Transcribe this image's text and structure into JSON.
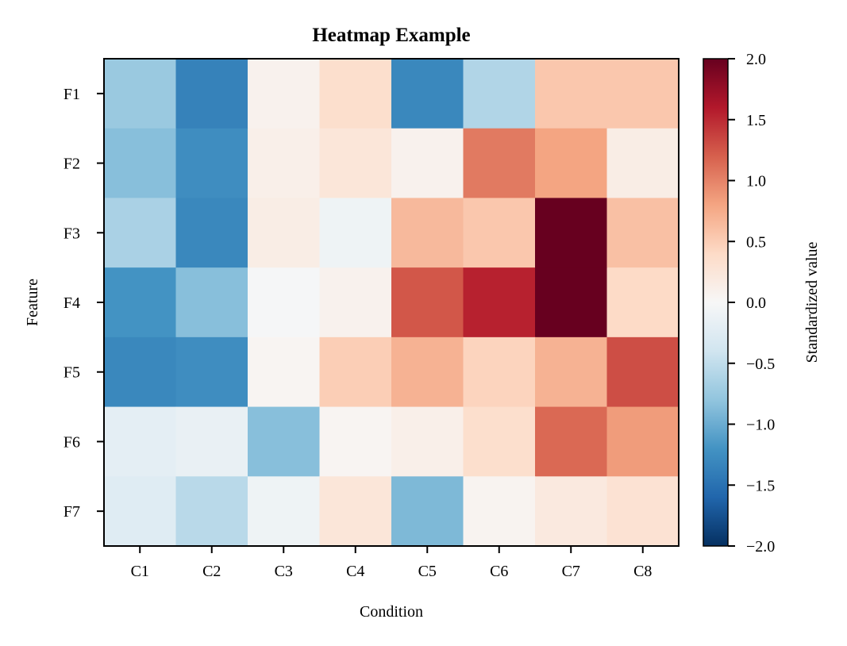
{
  "chart_data": {
    "type": "heatmap",
    "title": "Heatmap Example",
    "xlabel": "Condition",
    "ylabel": "Feature",
    "x_categories": [
      "C1",
      "C2",
      "C3",
      "C4",
      "C5",
      "C6",
      "C7",
      "C8"
    ],
    "y_categories": [
      "F1",
      "F2",
      "F3",
      "F4",
      "F5",
      "F6",
      "F7"
    ],
    "values": [
      [
        -0.75,
        -1.35,
        0.08,
        0.35,
        -1.3,
        -0.6,
        0.55,
        0.55
      ],
      [
        -0.85,
        -1.25,
        0.12,
        0.25,
        0.08,
        1.05,
        0.8,
        0.15
      ],
      [
        -0.65,
        -1.3,
        0.15,
        -0.1,
        0.65,
        0.55,
        2.0,
        0.6
      ],
      [
        -1.2,
        -0.85,
        -0.02,
        0.08,
        1.25,
        1.55,
        2.0,
        0.4
      ],
      [
        -1.3,
        -1.25,
        0.04,
        0.5,
        0.7,
        0.45,
        0.7,
        1.3
      ],
      [
        -0.2,
        -0.15,
        -0.85,
        0.04,
        0.12,
        0.35,
        1.15,
        0.85
      ],
      [
        -0.25,
        -0.55,
        -0.1,
        0.25,
        -0.9,
        0.06,
        0.2,
        0.3
      ]
    ],
    "colorbar": {
      "label": "Standardized value",
      "vmin": -2.0,
      "vmax": 2.0,
      "ticks": [
        "2.0",
        "1.5",
        "1.0",
        "0.5",
        "0.0",
        "−0.5",
        "−1.0",
        "−1.5",
        "−2.0"
      ]
    },
    "colormap": "RdBu_r",
    "grid": false
  }
}
